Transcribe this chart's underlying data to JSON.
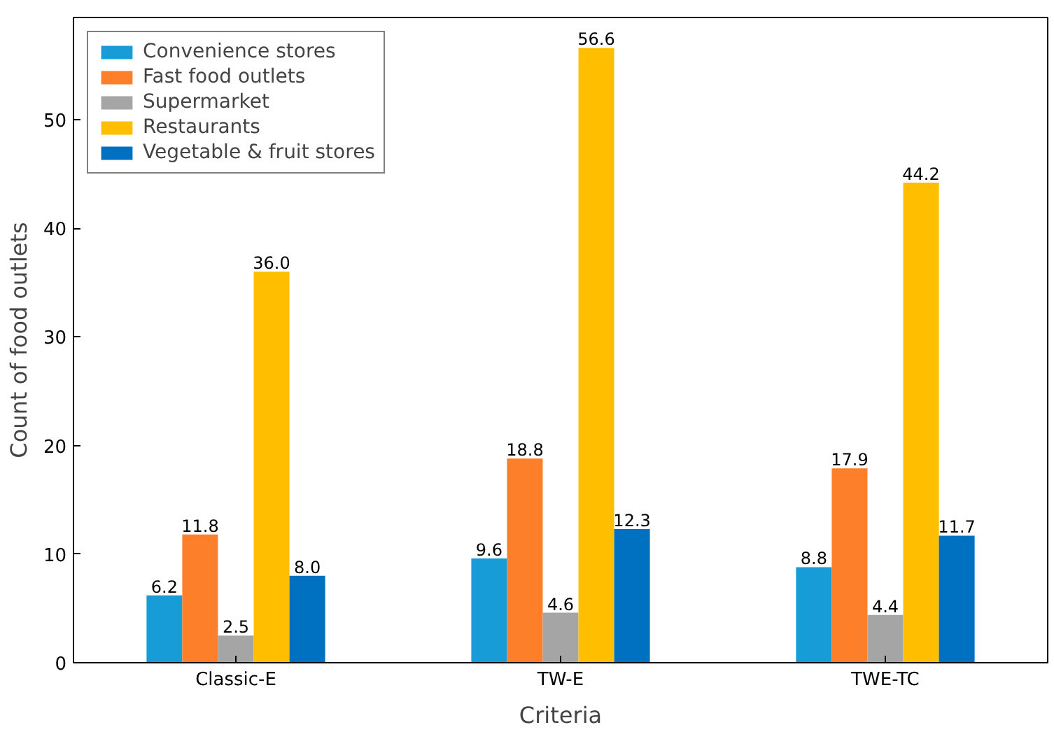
{
  "chart_data": {
    "type": "bar",
    "xlabel": "Criteria",
    "ylabel": "Count of food outlets",
    "categories": [
      "Classic-E",
      "TW-E",
      "TWE-TC"
    ],
    "series": [
      {
        "name": "Convenience stores",
        "color": "#179cd8",
        "values": [
          6.2,
          9.6,
          8.8
        ],
        "value_labels": [
          "6.2",
          "9.6",
          "8.8"
        ]
      },
      {
        "name": "Fast food outlets",
        "color": "#fe7f2a",
        "values": [
          11.8,
          18.8,
          17.9
        ],
        "value_labels": [
          "11.8",
          "18.8",
          "17.9"
        ]
      },
      {
        "name": "Supermarket",
        "color": "#a5a5a5",
        "values": [
          2.5,
          4.6,
          4.4
        ],
        "value_labels": [
          "2.5",
          "4.6",
          "4.4"
        ]
      },
      {
        "name": "Restaurants",
        "color": "#ffbf00",
        "values": [
          36.0,
          56.6,
          44.2
        ],
        "value_labels": [
          "36.0",
          "56.6",
          "44.2"
        ]
      },
      {
        "name": "Vegetable & fruit stores",
        "color": "#0070c0",
        "values": [
          8.0,
          12.3,
          11.7
        ],
        "value_labels": [
          "8.0",
          "12.3",
          "11.7"
        ]
      }
    ],
    "ylim": [
      0,
      59.4
    ],
    "yticks": [
      0,
      10,
      20,
      30,
      40,
      50
    ],
    "legend": "top left",
    "grid": false
  }
}
